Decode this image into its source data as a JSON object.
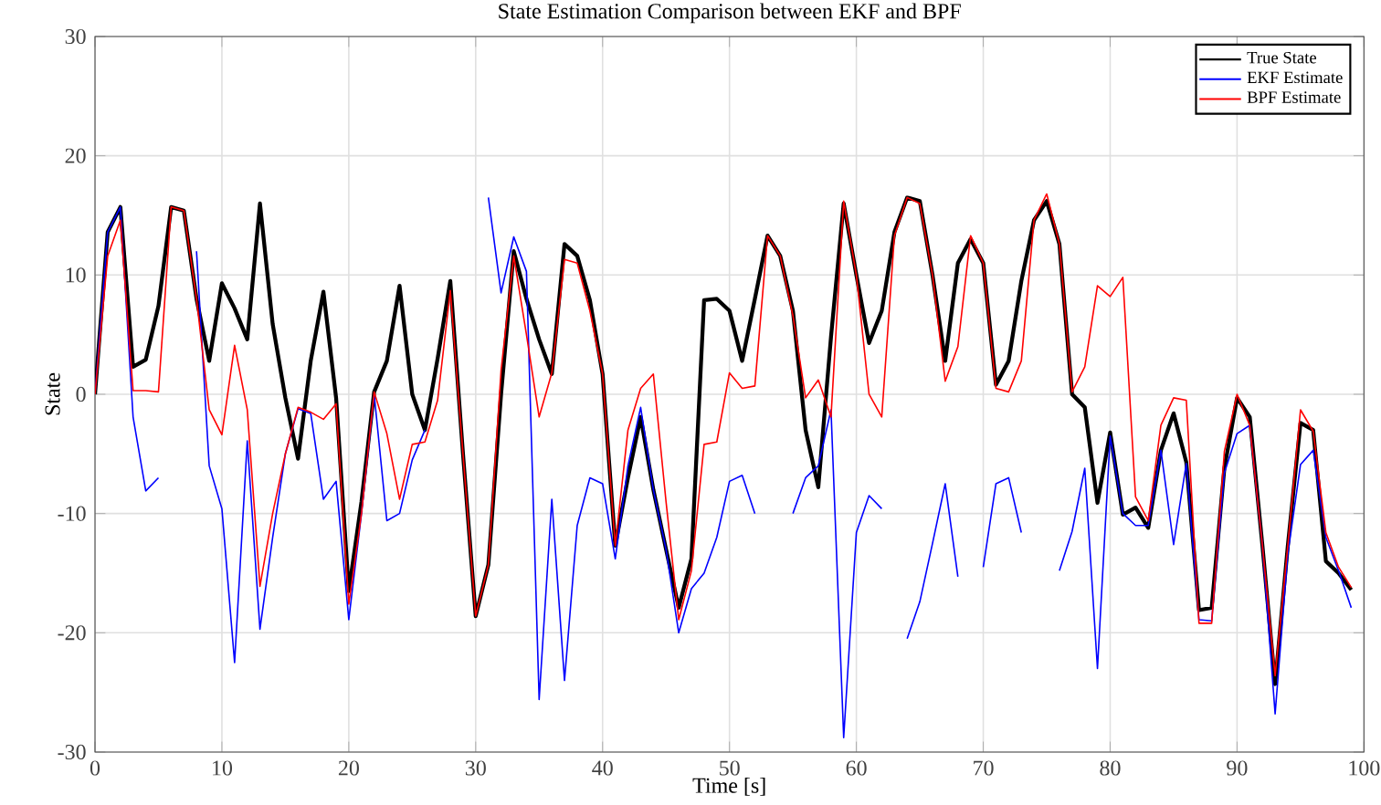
{
  "chart_data": {
    "type": "line",
    "title": "State Estimation Comparison between EKF and BPF",
    "xlabel": "Time [s]",
    "ylabel": "State",
    "x": [
      0,
      1,
      2,
      3,
      4,
      5,
      6,
      7,
      8,
      9,
      10,
      11,
      12,
      13,
      14,
      15,
      16,
      17,
      18,
      19,
      20,
      21,
      22,
      23,
      24,
      25,
      26,
      27,
      28,
      29,
      30,
      31,
      32,
      33,
      34,
      35,
      36,
      37,
      38,
      39,
      40,
      41,
      42,
      43,
      44,
      45,
      46,
      47,
      48,
      49,
      50,
      51,
      52,
      53,
      54,
      55,
      56,
      57,
      58,
      59,
      60,
      61,
      62,
      63,
      64,
      65,
      66,
      67,
      68,
      69,
      70,
      71,
      72,
      73,
      74,
      75,
      76,
      77,
      78,
      79,
      80,
      81,
      82,
      83,
      84,
      85,
      86,
      87,
      88,
      89,
      90,
      91,
      92,
      93,
      94,
      95,
      96,
      97,
      98,
      99
    ],
    "series": [
      {
        "name": "True State",
        "color": "#000000",
        "values": [
          0,
          13.6,
          15.7,
          2.3,
          2.9,
          7.4,
          15.7,
          15.4,
          8,
          2.8,
          9.3,
          7.2,
          4.6,
          16,
          5.9,
          -0.3,
          -5.4,
          2.8,
          8.6,
          -0.3,
          -16.5,
          -9,
          0.2,
          2.8,
          9.1,
          0,
          -3,
          3,
          9.5,
          -5,
          -18.6,
          -14.3,
          0,
          12,
          8,
          4.6,
          1.7,
          12.6,
          11.6,
          7.9,
          1.7,
          -12.7,
          -7,
          -1.9,
          -8,
          -13,
          -17.9,
          -13.8,
          7.9,
          8,
          7,
          2.8,
          8,
          13.3,
          11.6,
          7,
          -3,
          -7.8,
          4.8,
          16,
          10,
          4.3,
          7,
          13.6,
          16.5,
          16.2,
          10,
          2.8,
          11,
          13,
          11,
          0.8,
          2.8,
          9.5,
          14.6,
          16.2,
          12.6,
          0,
          -1.1,
          -9.1,
          -3.2,
          -10.1,
          -9.5,
          -11.2,
          -4.7,
          -1.6,
          -5.7,
          -18.1,
          -17.9,
          -6.2,
          -0.3,
          -1.9,
          -12.7,
          -24.3,
          -12.7,
          -2.4,
          -3,
          -14,
          -15,
          -16.4
        ]
      },
      {
        "name": "EKF Estimate",
        "color": "#0000ff",
        "values": [
          0,
          13.6,
          15.7,
          -1.9,
          -8.1,
          -7,
          null,
          null,
          12,
          -6,
          -9.6,
          -22.5,
          -3.9,
          -19.7,
          -12,
          -5,
          -1.2,
          -1.6,
          -8.8,
          -7.3,
          -18.9,
          -10,
          0,
          -10.6,
          -10,
          -5.5,
          -3,
          null,
          null,
          null,
          null,
          16.5,
          8.5,
          13.2,
          10.3,
          -25.6,
          -8.8,
          -24,
          -11,
          -7,
          -7.5,
          -13.8,
          -6,
          -1.1,
          -8,
          -13,
          -20,
          -16.3,
          -15,
          -12,
          -7.3,
          -6.8,
          -10,
          null,
          null,
          -10,
          -7,
          -6,
          -1.3,
          -28.8,
          -11.6,
          -8.5,
          -9.6,
          null,
          -20.5,
          -17.4,
          -12.5,
          -7.5,
          -15.3,
          null,
          -14.5,
          -7.5,
          -7,
          -11.6,
          null,
          null,
          -14.8,
          -11.5,
          -6.2,
          -23,
          -3.5,
          -10,
          -11,
          -11,
          -4.7,
          -12.6,
          -5.8,
          -18.9,
          -19,
          -6.6,
          -3.3,
          -2.6,
          -12.7,
          -26.8,
          -13.4,
          -5.9,
          -4.7,
          -12,
          -14.8,
          -17.9
        ]
      },
      {
        "name": "BPF Estimate",
        "color": "#ff0000",
        "values": [
          0,
          11.6,
          14.6,
          0.3,
          0.3,
          0.2,
          15.7,
          15.4,
          8,
          -1.3,
          -3.4,
          4.1,
          -1.3,
          -16.1,
          -10,
          -5,
          -1.1,
          -1.5,
          -2.1,
          -0.8,
          -17.6,
          -10,
          0.2,
          -3.3,
          -8.8,
          -4.2,
          -4,
          -0.5,
          8.7,
          -5,
          -18.6,
          -14.3,
          2,
          11.6,
          5,
          -1.9,
          1.8,
          11.3,
          11,
          7,
          1.7,
          -12.7,
          -3,
          0.5,
          1.7,
          -9,
          -18.9,
          -14.8,
          -4.2,
          -4,
          1.8,
          0.5,
          0.7,
          13.3,
          11.6,
          6.6,
          -0.3,
          1.2,
          -1.9,
          16.2,
          10,
          0,
          -1.9,
          13.3,
          16.5,
          16,
          10,
          1.1,
          4,
          13.3,
          11,
          0.5,
          0.2,
          2.8,
          14.6,
          16.8,
          12.6,
          0.2,
          2.3,
          9.1,
          8.2,
          9.8,
          -8.6,
          -10.6,
          -2.6,
          -0.3,
          -0.5,
          -19.2,
          -19.2,
          -4.8,
          0,
          -2.6,
          -12.7,
          -23.6,
          -12.7,
          -1.3,
          -3.1,
          -11.6,
          -14.5,
          -16.2
        ]
      }
    ],
    "xlim": [
      0,
      100
    ],
    "ylim": [
      -30,
      30
    ],
    "xticks": [
      0,
      10,
      20,
      30,
      40,
      50,
      60,
      70,
      80,
      90,
      100
    ],
    "yticks": [
      -30,
      -20,
      -10,
      0,
      10,
      20,
      30
    ],
    "grid": true,
    "legend": "top right",
    "marker": "none",
    "line_style": "solid"
  }
}
